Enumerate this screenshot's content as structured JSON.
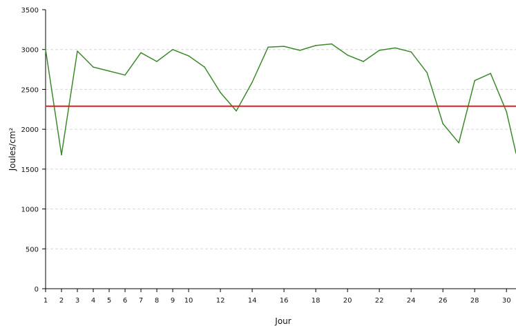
{
  "chart_data": {
    "type": "line",
    "xlabel": "Jour",
    "ylabel": "Joules/cm²",
    "ylim": [
      0,
      3500
    ],
    "xlim": [
      1,
      30.6
    ],
    "grid": true,
    "yticks": [
      "0",
      "500",
      "1000",
      "1500",
      "2000",
      "2500",
      "3000",
      "3500"
    ],
    "xticks": [
      "1",
      "2",
      "3",
      "4",
      "5",
      "6",
      "7",
      "8",
      "9",
      "10",
      "12",
      "14",
      "16",
      "18",
      "20",
      "22",
      "24",
      "26",
      "28",
      "30"
    ],
    "series": [
      {
        "color": "#3a8a2a",
        "x": [
          1,
          2,
          3,
          4,
          5,
          6,
          7,
          8,
          9,
          10,
          11,
          12,
          13,
          14,
          15,
          16,
          17,
          18,
          19,
          20,
          21,
          22,
          23,
          24,
          25,
          26,
          27,
          28,
          29,
          30,
          30.6
        ],
        "y": [
          3000,
          1680,
          2980,
          2780,
          2730,
          2680,
          2960,
          2850,
          3000,
          2920,
          2780,
          2460,
          2230,
          2590,
          3030,
          3040,
          2990,
          3050,
          3070,
          2930,
          2850,
          2990,
          3020,
          2970,
          2710,
          2070,
          1830,
          2610,
          2700,
          2220,
          1700
        ]
      },
      {
        "color": "#e02020",
        "x": [
          1,
          30.6
        ],
        "y": [
          2290,
          2290
        ]
      }
    ]
  }
}
